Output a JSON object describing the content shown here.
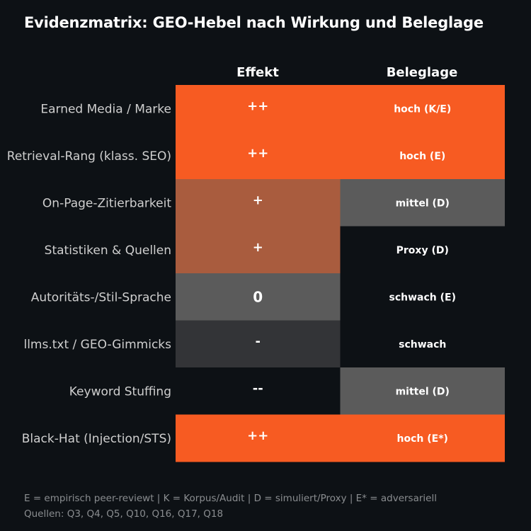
{
  "title": "Evidenzmatrix: GEO-Hebel nach Wirkung und Beleglage",
  "chart_data": {
    "type": "heatmap",
    "columns": [
      "Effekt",
      "Beleglage"
    ],
    "rows": [
      "Earned Media / Marke",
      "Retrieval-Rang (klass. SEO)",
      "On-Page-Zitierbarkeit",
      "Statistiken & Quellen",
      "Autoritäts-/Stil-Sprache",
      "llms.txt / GEO-Gimmicks",
      "Keyword Stuffing",
      "Black-Hat (Injection/STS)"
    ],
    "effekt": [
      "++",
      "++",
      "+",
      "+",
      "0",
      "-",
      "--",
      "++"
    ],
    "beleglage": [
      "hoch (K/E)",
      "hoch (E)",
      "mittel (D)",
      "Proxy (D)",
      "schwach (E)",
      "schwach",
      "mittel (D)",
      "hoch (E*)"
    ],
    "colors": {
      "++": "#f75b22",
      "+": "#a95c3e",
      "0": "#5b5b5b",
      "-": "#333437",
      "--": "#0d1115",
      "hoch": "#f75b22",
      "mittel": "#5b5b5b",
      "Proxy": "#0d1115",
      "schwach": "#0d1115"
    }
  },
  "footer": {
    "legend": "E = empirisch peer-reviewt | K = Korpus/Audit | D = simuliert/Proxy | E* = adversariell",
    "sources": "Quellen: Q3, Q4, Q5, Q10, Q16, Q17, Q18"
  }
}
